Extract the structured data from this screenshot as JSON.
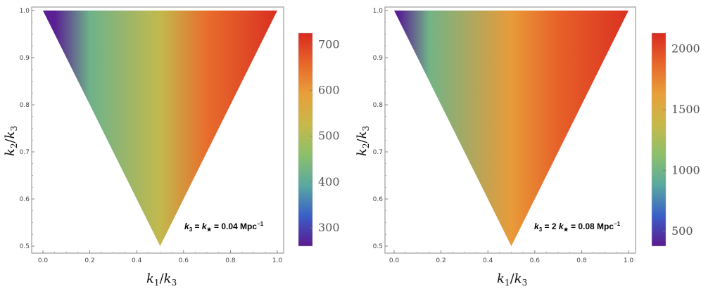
{
  "chart_data": [
    {
      "type": "heatmap",
      "xlabel": {
        "k": "k",
        "sub1": "1",
        "slash": "/",
        "sub2": "3"
      },
      "ylabel": {
        "k": "k",
        "sub1": "2",
        "slash": "/",
        "sub2": "3"
      },
      "xlim": [
        0.0,
        1.0
      ],
      "ylim": [
        0.5,
        1.0
      ],
      "x_ticks": [
        "0.0",
        "0.2",
        "0.4",
        "0.6",
        "0.8",
        "1.0"
      ],
      "y_ticks": [
        "0.5",
        "0.6",
        "0.7",
        "0.8",
        "0.9",
        "1.0"
      ],
      "domain": "triangle with vertices (0,1), (1,1), (0.5,0.5)",
      "colorbar": {
        "min": 260,
        "max": 725,
        "ticks": [
          "300",
          "400",
          "500",
          "600",
          "700"
        ]
      },
      "field": {
        "description_values": [
          {
            "x": 0.05,
            "y": 1.0,
            "value": 265
          },
          {
            "x": 0.2,
            "y": 0.9,
            "value": 420
          },
          {
            "x": 0.5,
            "y": 0.5,
            "value": 520
          },
          {
            "x": 0.7,
            "y": 0.9,
            "value": 650
          },
          {
            "x": 1.0,
            "y": 1.0,
            "value": 720
          }
        ]
      },
      "annotation": {
        "a": "k",
        "a_sub": "3",
        "eq1": " = ",
        "b": "k",
        "b_sub": "★",
        "eq2": " = 0.04 Mpc",
        "sup": "−1"
      }
    },
    {
      "type": "heatmap",
      "xlabel": {
        "k": "k",
        "sub1": "1",
        "slash": "/",
        "sub2": "3"
      },
      "ylabel": {
        "k": "k",
        "sub1": "2",
        "slash": "/",
        "sub2": "3"
      },
      "xlim": [
        0.0,
        1.0
      ],
      "ylim": [
        0.5,
        1.0
      ],
      "x_ticks": [
        "0.0",
        "0.2",
        "0.4",
        "0.6",
        "0.8",
        "1.0"
      ],
      "y_ticks": [
        "0.5",
        "0.6",
        "0.7",
        "0.8",
        "0.9",
        "1.0"
      ],
      "domain": "triangle with vertices (0,1), (1,1), (0.5,0.5)",
      "colorbar": {
        "min": 380,
        "max": 2130,
        "ticks": [
          "500",
          "1000",
          "1500",
          "2000"
        ]
      },
      "field": {
        "description_values": [
          {
            "x": 0.02,
            "y": 1.0,
            "value": 400
          },
          {
            "x": 0.15,
            "y": 0.9,
            "value": 1000
          },
          {
            "x": 0.5,
            "y": 0.5,
            "value": 1650
          },
          {
            "x": 0.7,
            "y": 0.9,
            "value": 1900
          },
          {
            "x": 1.0,
            "y": 1.0,
            "value": 2100
          }
        ]
      },
      "annotation": {
        "a": "k",
        "a_sub": "3",
        "eq1": " = 2 ",
        "b": "k",
        "b_sub": "★",
        "eq2": " = 0.08 Mpc",
        "sup": "−1"
      }
    }
  ],
  "colors": {
    "colormap": [
      "#5b1a8f",
      "#3a5fc8",
      "#5aa9a0",
      "#8cc06a",
      "#c8b84a",
      "#e8a03a",
      "#e8662a",
      "#d82a20"
    ],
    "frame": "#888888"
  }
}
